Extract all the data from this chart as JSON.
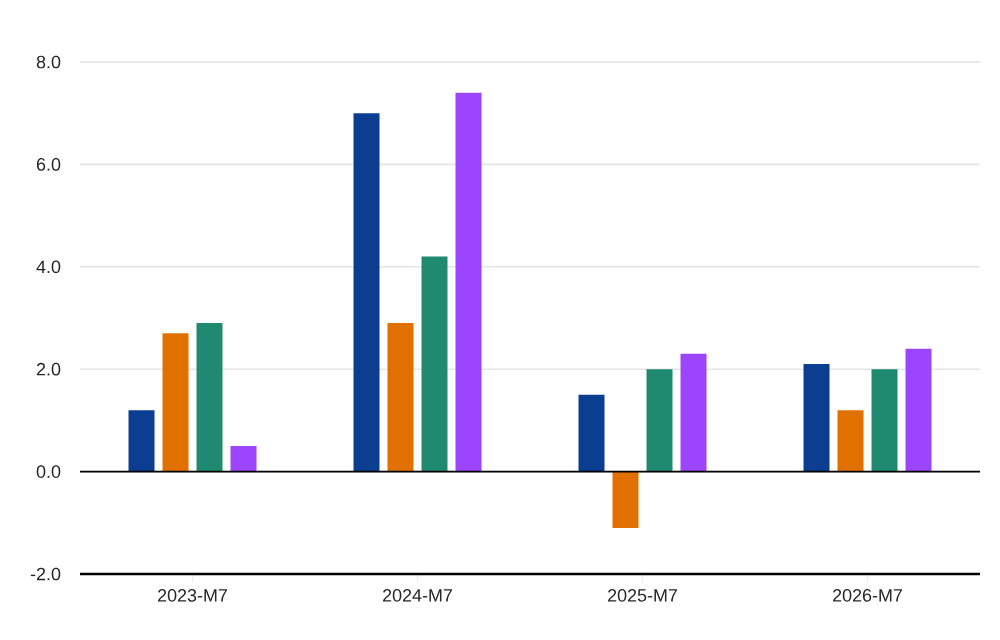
{
  "chart_data": {
    "type": "bar",
    "categories": [
      "2023-M7",
      "2024-M7",
      "2025-M7",
      "2026-M7"
    ],
    "series": [
      {
        "color": "#0b3d91",
        "values": [
          1.2,
          7.0,
          1.5,
          2.1
        ]
      },
      {
        "color": "#e07000",
        "values": [
          2.7,
          2.9,
          -1.1,
          1.2
        ]
      },
      {
        "color": "#1f8a70",
        "values": [
          2.9,
          4.2,
          2.0,
          2.0
        ]
      },
      {
        "color": "#9b45ff",
        "values": [
          0.5,
          7.4,
          2.3,
          2.4
        ]
      }
    ],
    "ylim": [
      -2,
      8
    ],
    "yticks": [
      {
        "value": -2,
        "label": "-2.0"
      },
      {
        "value": 0,
        "label": "0.0"
      },
      {
        "value": 2,
        "label": "2.0"
      },
      {
        "value": 4,
        "label": "4.0"
      },
      {
        "value": 6,
        "label": "6.0"
      },
      {
        "value": 8,
        "label": "8.0"
      }
    ],
    "grid": "y",
    "legend": false
  }
}
